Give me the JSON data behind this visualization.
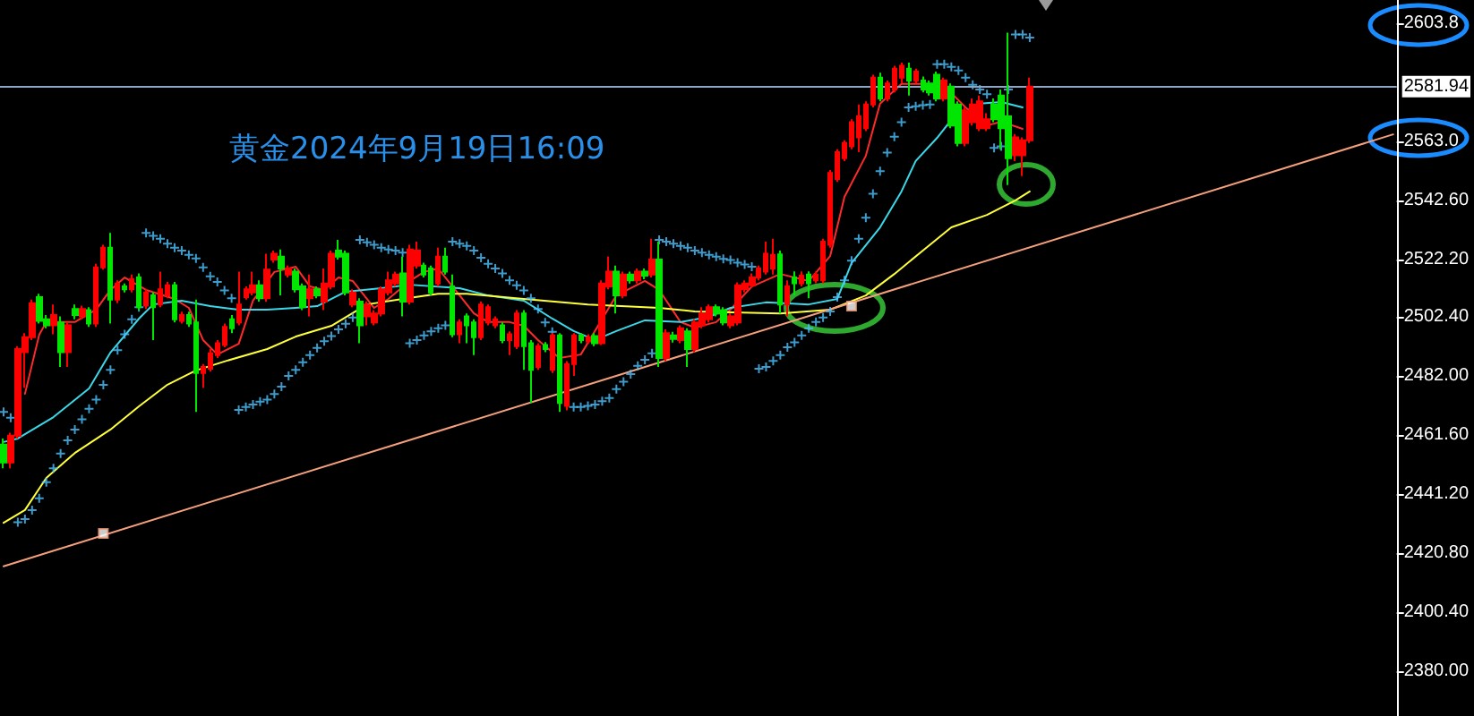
{
  "chart_data": {
    "type": "candlestick",
    "title": "黄金2024年9月19日16:09",
    "categories": [
      null,
      null,
      null,
      null,
      null,
      null,
      null,
      null,
      null,
      null,
      null,
      null,
      null,
      null,
      null,
      null,
      null,
      null,
      null,
      null,
      null,
      null,
      null,
      null,
      null,
      null,
      null,
      null,
      null,
      null,
      null,
      null,
      null,
      null,
      null,
      null,
      null,
      null,
      null,
      null,
      null,
      null,
      null,
      null,
      null,
      null,
      null,
      null,
      null,
      null,
      null,
      null,
      null,
      null,
      null,
      null,
      null,
      null,
      null,
      null,
      null,
      null,
      null,
      null,
      null,
      null,
      null,
      null,
      null,
      null,
      null,
      null,
      null,
      null,
      null,
      null,
      null,
      null,
      null,
      null,
      null,
      null,
      null,
      null,
      null,
      null,
      null,
      null,
      null,
      null,
      null,
      null,
      null,
      null,
      null,
      null,
      null,
      null,
      null,
      null,
      null,
      null,
      null,
      null,
      null,
      null,
      null,
      null,
      null,
      null,
      null,
      null,
      null,
      null,
      null,
      null,
      null,
      null,
      null,
      null,
      null,
      null,
      null,
      null,
      null,
      null,
      null,
      null,
      null,
      null,
      null,
      null,
      null,
      null,
      null,
      null,
      null,
      null,
      null,
      null,
      null,
      null,
      null,
      null,
      null,
      null,
      null,
      null,
      null,
      null,
      null,
      null,
      null,
      null,
      null,
      null,
      null,
      null,
      null,
      null,
      null,
      null,
      null,
      null,
      null,
      null,
      null,
      null,
      null,
      null,
      null,
      null,
      null,
      null,
      null,
      null,
      null,
      null,
      null,
      null,
      null,
      null,
      null,
      null,
      null,
      null,
      null,
      null,
      null,
      null,
      null,
      null,
      null,
      null,
      null,
      null
    ],
    "ohlc": [
      [
        2458.3,
        2460.4,
        2450.1,
        2452.1
      ],
      [
        2452.1,
        2462.4,
        2450.1,
        2461.4
      ],
      [
        2461.4,
        2492.3,
        2460.4,
        2491.3
      ],
      [
        2490.2,
        2496.8,
        2477.9,
        2495.4
      ],
      [
        2495.4,
        2508.4,
        2494.4,
        2507.1
      ],
      [
        2509.2,
        2510.4,
        2500.1,
        2501.0
      ],
      [
        2501.6,
        2503.0,
        2498.5,
        2499.5
      ],
      [
        2499.5,
        2506.7,
        2496.4,
        2503.0
      ],
      [
        2500.5,
        2502.6,
        2485.1,
        2490.2
      ],
      [
        2490.2,
        2500.5,
        2485.1,
        2499.5
      ],
      [
        2505.1,
        2506.7,
        2501.6,
        2503.0
      ],
      [
        2502.6,
        2506.3,
        2501.6,
        2505.1
      ],
      [
        2504.7,
        2505.7,
        2498.9,
        2500.1
      ],
      [
        2500.1,
        2520.7,
        2498.9,
        2519.5
      ],
      [
        2519.5,
        2527.3,
        2518.7,
        2526.3
      ],
      [
        2526.3,
        2531.4,
        2500.1,
        2508.4
      ],
      [
        2508.4,
        2515.0,
        2507.1,
        2513.9
      ],
      [
        2512.9,
        2513.9,
        2510.8,
        2511.9
      ],
      [
        2511.9,
        2517.0,
        2510.8,
        2515.4
      ],
      [
        2516.0,
        2517.4,
        2504.7,
        2505.7
      ],
      [
        2506.3,
        2511.9,
        2505.1,
        2510.8
      ],
      [
        2509.8,
        2510.8,
        2494.4,
        2505.7
      ],
      [
        2506.7,
        2518.0,
        2505.7,
        2511.9
      ],
      [
        2509.8,
        2514.5,
        2508.8,
        2513.3
      ],
      [
        2513.3,
        2514.5,
        2500.5,
        2501.6
      ],
      [
        2501.0,
        2504.2,
        2500.1,
        2503.0
      ],
      [
        2503.0,
        2504.2,
        2498.9,
        2500.1
      ],
      [
        2500.5,
        2508.4,
        2469.6,
        2483.0
      ],
      [
        2483.0,
        2486.1,
        2477.9,
        2485.1
      ],
      [
        2484.5,
        2491.3,
        2483.6,
        2489.8
      ],
      [
        2489.2,
        2494.4,
        2488.2,
        2493.3
      ],
      [
        2492.7,
        2500.1,
        2491.9,
        2498.9
      ],
      [
        2501.6,
        2503.0,
        2496.8,
        2498.5
      ],
      [
        2500.5,
        2518.0,
        2499.5,
        2506.7
      ],
      [
        2509.2,
        2512.9,
        2508.4,
        2511.9
      ],
      [
        2510.8,
        2518.0,
        2509.8,
        2513.3
      ],
      [
        2513.3,
        2515.0,
        2507.7,
        2508.8
      ],
      [
        2508.8,
        2524.2,
        2507.7,
        2518.7
      ],
      [
        2522.2,
        2525.3,
        2521.1,
        2524.2
      ],
      [
        2523.2,
        2525.7,
        2509.8,
        2519.1
      ],
      [
        2517.0,
        2520.1,
        2516.0,
        2519.1
      ],
      [
        2518.0,
        2519.1,
        2510.8,
        2511.9
      ],
      [
        2512.9,
        2513.9,
        2504.7,
        2505.7
      ],
      [
        2508.8,
        2517.0,
        2502.6,
        2511.9
      ],
      [
        2511.9,
        2512.9,
        2508.8,
        2509.8
      ],
      [
        2507.7,
        2519.1,
        2504.7,
        2513.9
      ],
      [
        2512.9,
        2525.3,
        2511.9,
        2524.2
      ],
      [
        2525.3,
        2529.0,
        2522.2,
        2523.2
      ],
      [
        2524.2,
        2525.3,
        2509.8,
        2510.8
      ],
      [
        2506.7,
        2511.9,
        2505.7,
        2510.8
      ],
      [
        2507.7,
        2508.8,
        2493.3,
        2499.5
      ],
      [
        2502.6,
        2507.7,
        2499.5,
        2506.7
      ],
      [
        2500.5,
        2504.7,
        2499.5,
        2503.6
      ],
      [
        2503.6,
        2512.9,
        2502.6,
        2511.9
      ],
      [
        2510.8,
        2518.0,
        2509.8,
        2515.0
      ],
      [
        2513.9,
        2518.0,
        2512.9,
        2517.0
      ],
      [
        2517.4,
        2523.2,
        2502.6,
        2507.7
      ],
      [
        2507.7,
        2527.3,
        2506.7,
        2525.7
      ],
      [
        2520.1,
        2528.4,
        2519.1,
        2525.3
      ],
      [
        2520.1,
        2521.1,
        2516.0,
        2517.0
      ],
      [
        2519.1,
        2520.1,
        2509.8,
        2510.8
      ],
      [
        2513.9,
        2526.3,
        2512.9,
        2523.2
      ],
      [
        2523.2,
        2526.3,
        2517.0,
        2518.0
      ],
      [
        2512.9,
        2517.0,
        2495.4,
        2496.4
      ],
      [
        2496.4,
        2501.6,
        2493.3,
        2500.5
      ],
      [
        2502.6,
        2503.6,
        2493.3,
        2499.5
      ],
      [
        2500.5,
        2501.6,
        2489.2,
        2495.4
      ],
      [
        2495.4,
        2507.7,
        2494.4,
        2506.7
      ],
      [
        2500.5,
        2506.7,
        2499.5,
        2505.7
      ],
      [
        2499.5,
        2502.6,
        2498.5,
        2501.6
      ],
      [
        2499.5,
        2500.5,
        2493.3,
        2494.4
      ],
      [
        2494.4,
        2497.4,
        2489.2,
        2496.4
      ],
      [
        2492.3,
        2504.7,
        2491.3,
        2503.6
      ],
      [
        2503.6,
        2504.7,
        2484.1,
        2492.3
      ],
      [
        2493.3,
        2494.4,
        2472.7,
        2484.1
      ],
      [
        2485.1,
        2493.3,
        2484.1,
        2492.3
      ],
      [
        2492.7,
        2493.7,
        2490.2,
        2491.3
      ],
      [
        2484.1,
        2496.8,
        2483.0,
        2496.0
      ],
      [
        2496.0,
        2496.8,
        2469.6,
        2472.7
      ],
      [
        2471.7,
        2487.1,
        2470.1,
        2486.1
      ],
      [
        2486.1,
        2496.8,
        2482.0,
        2496.0
      ],
      [
        2496.0,
        2496.8,
        2493.3,
        2494.4
      ],
      [
        2493.9,
        2496.4,
        2493.1,
        2495.4
      ],
      [
        2495.8,
        2496.8,
        2492.3,
        2493.3
      ],
      [
        2493.3,
        2515.0,
        2492.7,
        2513.9
      ],
      [
        2512.9,
        2523.2,
        2511.9,
        2518.0
      ],
      [
        2518.0,
        2520.1,
        2503.6,
        2509.8
      ],
      [
        2509.8,
        2518.0,
        2508.8,
        2517.0
      ],
      [
        2517.0,
        2518.0,
        2513.9,
        2515.0
      ],
      [
        2515.0,
        2519.1,
        2513.9,
        2518.0
      ],
      [
        2518.0,
        2519.1,
        2515.4,
        2516.6
      ],
      [
        2517.0,
        2529.4,
        2516.0,
        2522.2
      ],
      [
        2522.2,
        2528.4,
        2485.1,
        2488.2
      ],
      [
        2488.2,
        2498.1,
        2487.1,
        2496.8
      ],
      [
        2496.0,
        2497.2,
        2493.5,
        2494.8
      ],
      [
        2494.4,
        2499.5,
        2493.3,
        2498.5
      ],
      [
        2497.4,
        2498.5,
        2485.1,
        2491.3
      ],
      [
        2491.3,
        2501.6,
        2490.2,
        2500.5
      ],
      [
        2499.5,
        2505.7,
        2498.5,
        2503.6
      ],
      [
        2501.6,
        2506.7,
        2500.5,
        2505.7
      ],
      [
        2505.7,
        2506.7,
        2502.6,
        2503.6
      ],
      [
        2504.7,
        2505.7,
        2499.5,
        2500.5
      ],
      [
        2499.5,
        2503.6,
        2498.5,
        2502.6
      ],
      [
        2500.5,
        2514.3,
        2499.5,
        2513.3
      ],
      [
        2511.9,
        2515.0,
        2510.8,
        2513.9
      ],
      [
        2513.3,
        2517.4,
        2512.5,
        2516.0
      ],
      [
        2516.0,
        2520.1,
        2515.0,
        2519.1
      ],
      [
        2518.0,
        2528.4,
        2517.0,
        2524.2
      ],
      [
        2519.1,
        2529.4,
        2517.0,
        2523.8
      ],
      [
        2524.0,
        2525.3,
        2503.6,
        2506.7
      ],
      [
        2506.7,
        2515.0,
        2502.6,
        2512.9
      ],
      [
        2516.0,
        2518.1,
        2509.8,
        2514.0
      ],
      [
        2514.0,
        2518.1,
        2512.9,
        2516.6
      ],
      [
        2517.0,
        2518.1,
        2508.8,
        2514.0
      ],
      [
        2515.0,
        2518.1,
        2514.0,
        2517.0
      ],
      [
        2515.0,
        2529.4,
        2514.0,
        2528.4
      ],
      [
        2527.3,
        2553.1,
        2526.3,
        2552.1
      ],
      [
        2550.0,
        2560.3,
        2549.0,
        2559.3
      ],
      [
        2557.2,
        2563.4,
        2556.2,
        2562.4
      ],
      [
        2561.3,
        2570.6,
        2560.3,
        2569.6
      ],
      [
        2564.4,
        2575.7,
        2559.3,
        2571.6
      ],
      [
        2567.5,
        2576.8,
        2566.5,
        2575.7
      ],
      [
        2575.7,
        2586.0,
        2574.7,
        2585.0
      ],
      [
        2585.0,
        2586.7,
        2576.8,
        2577.8
      ],
      [
        2577.8,
        2584.0,
        2576.8,
        2583.0
      ],
      [
        2580.9,
        2589.1,
        2579.9,
        2588.1
      ],
      [
        2585.0,
        2590.2,
        2583.0,
        2589.1
      ],
      [
        2588.1,
        2590.2,
        2578.8,
        2584.0
      ],
      [
        2584.0,
        2588.1,
        2583.0,
        2587.1
      ],
      [
        2584.0,
        2585.4,
        2579.9,
        2580.9
      ],
      [
        2583.0,
        2584.0,
        2578.8,
        2579.9
      ],
      [
        2586.0,
        2587.1,
        2576.8,
        2577.8
      ],
      [
        2577.8,
        2585.0,
        2576.8,
        2584.0
      ],
      [
        2581.9,
        2583.0,
        2567.5,
        2568.5
      ],
      [
        2575.7,
        2576.8,
        2561.3,
        2562.4
      ],
      [
        2562.4,
        2574.7,
        2561.3,
        2573.7
      ],
      [
        2569.6,
        2577.8,
        2568.5,
        2575.7
      ],
      [
        2567.5,
        2578.8,
        2566.5,
        2576.8
      ],
      [
        2567.5,
        2572.7,
        2566.5,
        2570.6
      ],
      [
        2575.7,
        2577.8,
        2569.6,
        2570.6
      ],
      [
        2578.8,
        2580.9,
        2560.3,
        2567.5
      ],
      [
        2571.6,
        2600.5,
        2547.9,
        2557.2
      ],
      [
        2558.2,
        2565.5,
        2556.2,
        2564.4
      ],
      [
        2558.2,
        2564.4,
        2551.0,
        2563.4
      ],
      [
        2563.4,
        2585.0,
        2562.4,
        2581.9
      ],
      null,
      null,
      null,
      null,
      null,
      null,
      null,
      null,
      null,
      null,
      null,
      null,
      null,
      null,
      null,
      null,
      null,
      null,
      null,
      null,
      null,
      null,
      null,
      null,
      null,
      null,
      null,
      null,
      null,
      null,
      null,
      null,
      null,
      null,
      null,
      null,
      null,
      null,
      null,
      null,
      null,
      null,
      null,
      null,
      null,
      null,
      null,
      null,
      null,
      null,
      null
    ],
    "colors": [
      "#00e600",
      "#ff0000",
      "#ff0000",
      "#ff0000",
      "#ff0000",
      "#00e600",
      "#00e600",
      "#ff0000",
      "#00e600",
      "#ff0000",
      "#00e600",
      "#ff0000",
      "#00e600",
      "#ff0000",
      "#ff0000",
      "#00e600",
      "#ff0000",
      "#00e600",
      "#ff0000",
      "#00e600",
      "#ff0000",
      "#00e600",
      "#ff0000",
      "#ff0000",
      "#00e600",
      "#ff0000",
      "#00e600",
      "#00e600",
      "#ff0000",
      "#ff0000",
      "#ff0000",
      "#ff0000",
      "#00e600",
      "#ff0000",
      "#ff0000",
      "#ff0000",
      "#00e600",
      "#ff0000",
      "#ff0000",
      "#00e600",
      "#ff0000",
      "#00e600",
      "#00e600",
      "#ff0000",
      "#00e600",
      "#ff0000",
      "#ff0000",
      "#00e600",
      "#00e600",
      "#ff0000",
      "#00e600",
      "#ff0000",
      "#ff0000",
      "#ff0000",
      "#ff0000",
      "#ff0000",
      "#00e600",
      "#ff0000",
      "#ff0000",
      "#00e600",
      "#00e600",
      "#ff0000",
      "#00e600",
      "#00e600",
      "#ff0000",
      "#00e600",
      "#00e600",
      "#ff0000",
      "#ff0000",
      "#ff0000",
      "#00e600",
      "#ff0000",
      "#ff0000",
      "#00e600",
      "#00e600",
      "#ff0000",
      "#00e600",
      "#ff0000",
      "#00e600",
      "#ff0000",
      "#ff0000",
      "#00e600",
      "#ff0000",
      "#00e600",
      "#ff0000",
      "#ff0000",
      "#00e600",
      "#ff0000",
      "#00e600",
      "#ff0000",
      "#00e600",
      "#ff0000",
      "#00e600",
      "#ff0000",
      "#00e600",
      "#ff0000",
      "#00e600",
      "#ff0000",
      "#ff0000",
      "#ff0000",
      "#00e600",
      "#00e600",
      "#ff0000",
      "#ff0000",
      "#ff0000",
      "#ff0000",
      "#ff0000",
      "#ff0000",
      "#ff0000",
      "#00e600",
      "#ff0000",
      "#00e600",
      "#ff0000",
      "#00e600",
      "#ff0000",
      "#ff0000",
      "#ff0000",
      "#ff0000",
      "#ff0000",
      "#ff0000",
      "#ff0000",
      "#ff0000",
      "#ff0000",
      "#00e600",
      "#ff0000",
      "#ff0000",
      "#ff0000",
      "#00e600",
      "#ff0000",
      "#00e600",
      "#00e600",
      "#00e600",
      "#ff0000",
      "#00e600",
      "#00e600",
      "#ff0000",
      "#ff0000",
      "#ff0000",
      "#ff0000",
      "#00e600",
      "#00e600",
      "#00e600",
      "#ff0000",
      "#ff0000",
      "#ff0000",
      null,
      null,
      null,
      null,
      null,
      null,
      null,
      null,
      null,
      null,
      null,
      null,
      null,
      null,
      null,
      null,
      null,
      null,
      null,
      null,
      null,
      null,
      null,
      null,
      null,
      null,
      null,
      null,
      null,
      null,
      null,
      null,
      null,
      null,
      null,
      null,
      null,
      null,
      null,
      null,
      null,
      null,
      null,
      null,
      null,
      null,
      null,
      null,
      null,
      null,
      null
    ],
    "series": [
      {
        "type": "line",
        "color": "#ff2a2a",
        "marker": "none",
        "values": [
          null,
          null,
          null,
          2475.8,
          null,
          2496.2,
          2500.6,
          null,
          null,
          null,
          2500.6,
          null,
          null,
          2504.9,
          null,
          2511.7,
          null,
          2516.0,
          null,
          null,
          2511.7,
          null,
          null,
          null,
          2508.6,
          null,
          2505.5,
          null,
          2494.4,
          null,
          2489.4,
          null,
          null,
          2493.1,
          null,
          2508.0,
          null,
          null,
          2517.9,
          null,
          null,
          2519.7,
          null,
          2512.9,
          null,
          2511.7,
          null,
          2516.0,
          null,
          2514.8,
          null,
          null,
          2505.5,
          null,
          2508.6,
          null,
          null,
          2514.8,
          null,
          2517.9,
          null,
          2519.1,
          null,
          2512.9,
          null,
          null,
          2503.6,
          null,
          2500.6,
          null,
          null,
          2500.6,
          null,
          2499.3,
          null,
          2494.4,
          null,
          null,
          2488.2,
          null,
          null,
          2489.4,
          null,
          null,
          null,
          null,
          2509.8,
          null,
          null,
          null,
          2514.8,
          null,
          2511.7,
          null,
          null,
          2500.6,
          null,
          2498.7,
          null,
          null,
          2500.6,
          null,
          2504.9,
          null,
          null,
          2512.9,
          null,
          null,
          null,
          2517.2,
          null,
          null,
          null,
          2514.8,
          null,
          null,
          2523.4,
          null,
          2543.8,
          null,
          null,
          2558.0,
          null,
          2576.0,
          null,
          null,
          2582.8,
          null,
          null,
          2582.8,
          null,
          null,
          null,
          2579.7,
          null,
          2574.7,
          null,
          null,
          2568.5,
          null,
          2569.8,
          null,
          null,
          2567.3,
          null,
          null,
          null,
          null,
          null,
          null,
          null,
          null,
          null,
          null,
          null,
          null,
          null,
          null,
          null,
          null,
          null,
          null,
          null,
          null,
          null,
          null,
          null,
          null,
          null,
          null,
          null,
          null,
          null,
          null,
          null,
          null,
          null,
          null,
          null,
          null,
          null,
          null,
          null,
          null,
          null,
          null,
          null,
          null,
          null,
          null,
          null,
          null,
          null,
          null,
          null,
          null
        ]
      },
      {
        "type": "line",
        "color": "#3ad8e8",
        "marker": "none",
        "values": [
          2459.2,
          null,
          2460.4,
          null,
          null,
          null,
          null,
          2467.8,
          null,
          null,
          null,
          null,
          2477.7,
          null,
          null,
          2490.1,
          null,
          null,
          null,
          2501.8,
          null,
          2506.7,
          null,
          null,
          null,
          2508.0,
          null,
          null,
          null,
          2506.1,
          null,
          null,
          null,
          2504.9,
          null,
          null,
          null,
          2504.9,
          null,
          null,
          null,
          2505.5,
          null,
          null,
          2506.1,
          null,
          null,
          null,
          2511.1,
          null,
          null,
          null,
          null,
          2512.3,
          null,
          null,
          null,
          2513.5,
          null,
          null,
          null,
          null,
          null,
          null,
          2512.3,
          null,
          null,
          null,
          2509.8,
          null,
          null,
          null,
          null,
          2508.0,
          null,
          null,
          null,
          2501.8,
          null,
          null,
          2497.5,
          null,
          null,
          2494.4,
          null,
          null,
          2497.5,
          null,
          null,
          null,
          2501.2,
          null,
          null,
          null,
          null,
          2500.6,
          null,
          null,
          null,
          2502.4,
          null,
          null,
          2505.5,
          null,
          null,
          null,
          null,
          2507.4,
          null,
          null,
          null,
          null,
          null,
          2506.7,
          null,
          null,
          null,
          2508.6,
          null,
          2521.0,
          null,
          null,
          null,
          2533.3,
          null,
          null,
          2545.7,
          null,
          2556.2,
          null,
          null,
          2564.2,
          null,
          2570.4,
          null,
          null,
          null,
          2576.0,
          null,
          null,
          2576.6,
          null,
          null,
          2574.7,
          null,
          null,
          null,
          null,
          null,
          null,
          null,
          null,
          null,
          null,
          null,
          null,
          null,
          null,
          null,
          null,
          null,
          null,
          null,
          null,
          null,
          null,
          null,
          null,
          null,
          null,
          null,
          null,
          null,
          null,
          null,
          null,
          null,
          null,
          null,
          null,
          null,
          null,
          null,
          null,
          null,
          null,
          null,
          null,
          null,
          null,
          null,
          null,
          null,
          null,
          null,
          null
        ]
      },
      {
        "type": "line",
        "color": "#ffff3a",
        "marker": "none",
        "values": [
          2431.3,
          null,
          null,
          2435.7,
          null,
          null,
          2446.8,
          null,
          null,
          null,
          2455.4,
          null,
          null,
          null,
          null,
          2463.5,
          null,
          null,
          null,
          2471.5,
          null,
          null,
          null,
          2479.0,
          null,
          null,
          null,
          2483.9,
          null,
          null,
          null,
          2487.0,
          null,
          null,
          null,
          null,
          null,
          2491.3,
          null,
          null,
          null,
          2495.6,
          null,
          null,
          null,
          null,
          2499.3,
          null,
          null,
          null,
          null,
          2506.7,
          null,
          null,
          null,
          null,
          2508.6,
          null,
          null,
          null,
          null,
          2510.4,
          null,
          null,
          null,
          2510.4,
          null,
          null,
          null,
          null,
          null,
          null,
          null,
          2508.6,
          null,
          null,
          null,
          null,
          null,
          null,
          null,
          null,
          2506.7,
          null,
          null,
          null,
          null,
          null,
          null,
          null,
          null,
          null,
          2505.5,
          null,
          null,
          null,
          null,
          2504.3,
          null,
          null,
          null,
          null,
          null,
          null,
          null,
          null,
          null,
          null,
          null,
          2503.6,
          null,
          null,
          null,
          null,
          null,
          null,
          2504.9,
          null,
          null,
          null,
          null,
          2509.8,
          null,
          null,
          null,
          2517.2,
          null,
          null,
          null,
          2525.3,
          null,
          null,
          null,
          2533.3,
          null,
          null,
          null,
          null,
          2537.6,
          null,
          null,
          null,
          2542.6,
          null,
          2545.7,
          null,
          null,
          null,
          null,
          null,
          null,
          null,
          null,
          null,
          null,
          null,
          null,
          null,
          null,
          null,
          null,
          null,
          null,
          null,
          null,
          null,
          null,
          null,
          null,
          null,
          null,
          null,
          null,
          null,
          null,
          null,
          null,
          null,
          null,
          null,
          null,
          null,
          null,
          null,
          null,
          null,
          null,
          null,
          null,
          null,
          null,
          null,
          null,
          null,
          null,
          null
        ]
      },
      {
        "type": "scatter",
        "color": "#4cc3ff",
        "marker": "cross",
        "values": [
          2469.6,
          2467.6,
          2431.5,
          2432.6,
          2435.7,
          2439.8,
          2445.3,
          2450.1,
          2455.2,
          2459.8,
          2463.5,
          2467.0,
          2470.7,
          2473.8,
          2478.9,
          2484.1,
          2490.9,
          2496.4,
          2501.6,
          2505.7,
          2531.4,
          2530.4,
          2529.4,
          2527.7,
          2526.3,
          2525.3,
          2523.8,
          2522.6,
          2519.5,
          2516.4,
          2514.5,
          2511.5,
          2508.8,
          2470.3,
          2471.3,
          2472.1,
          2473.1,
          2473.8,
          2475.8,
          2478.3,
          2482.0,
          2484.1,
          2486.7,
          2489.2,
          2491.7,
          2494.0,
          2495.8,
          2498.1,
          2500.0,
          2502.2,
          2529.0,
          2528.1,
          2527.3,
          2526.3,
          2525.7,
          2525.3,
          2524.6,
          2493.3,
          2494.4,
          2496.0,
          2497.4,
          2498.5,
          2499.5,
          2528.4,
          2527.7,
          2526.9,
          2525.3,
          2522.8,
          2520.7,
          2519.1,
          2517.4,
          2515.0,
          2513.3,
          2511.5,
          2508.8,
          2505.1,
          2500.5,
          2497.2,
          null,
          null,
          2471.3,
          2471.3,
          2471.7,
          2472.1,
          2473.3,
          2474.4,
          2477.5,
          2480.0,
          2482.6,
          2485.5,
          2487.6,
          2489.8,
          2529.0,
          2528.4,
          2527.7,
          2526.9,
          2526.3,
          2525.3,
          2524.6,
          2523.8,
          2523.2,
          2522.4,
          2522.0,
          2521.1,
          2520.5,
          2519.7,
          2484.5,
          2485.1,
          2487.2,
          2489.2,
          2491.9,
          2493.6,
          2496.0,
          2498.5,
          2500.6,
          2502.2,
          2504.3,
          2509.2,
          2515.0,
          2521.8,
          2529.4,
          2536.6,
          2544.9,
          2552.7,
          2559.1,
          2564.6,
          2569.6,
          2574.7,
          2575.1,
          2575.5,
          2575.7,
          2589.6,
          2589.6,
          2588.7,
          2587.5,
          2585.0,
          2582.5,
          2580.9,
          2579.3,
          2560.7,
          2561.3,
          2580.9,
          2599.9,
          2599.9,
          2598.8,
          null,
          null,
          null,
          null,
          null,
          null,
          null,
          null,
          null,
          null,
          null,
          null,
          null,
          null,
          null,
          null,
          null,
          null,
          null,
          null,
          null,
          null,
          null,
          null,
          null,
          null,
          null,
          null,
          null,
          null,
          null,
          null,
          null,
          null,
          null,
          null,
          null,
          null,
          null,
          null,
          null,
          null,
          null,
          null,
          null,
          null,
          null,
          null,
          null,
          null,
          null
        ]
      },
      {
        "type": "line",
        "color": "#f4a07c",
        "marker": "none",
        "values": [
          2416.3,
          null,
          null,
          null,
          null,
          null,
          null,
          null,
          null,
          null,
          null,
          null,
          null,
          null,
          null,
          null,
          null,
          null,
          null,
          null,
          null,
          null,
          null,
          null,
          null,
          null,
          null,
          null,
          null,
          null,
          null,
          null,
          null,
          null,
          null,
          null,
          null,
          null,
          null,
          null,
          null,
          null,
          null,
          null,
          null,
          null,
          null,
          null,
          null,
          null,
          null,
          null,
          null,
          null,
          null,
          null,
          null,
          null,
          null,
          null,
          null,
          null,
          null,
          null,
          null,
          null,
          null,
          null,
          null,
          null,
          null,
          null,
          null,
          null,
          null,
          null,
          null,
          null,
          null,
          null,
          null,
          null,
          null,
          null,
          null,
          null,
          null,
          null,
          null,
          null,
          null,
          null,
          null,
          null,
          null,
          null,
          null,
          null,
          null,
          null,
          null,
          null,
          null,
          null,
          null,
          null,
          null,
          null,
          null,
          null,
          null,
          null,
          null,
          null,
          null,
          null,
          null,
          null,
          null,
          null,
          null,
          null,
          null,
          null,
          null,
          null,
          null,
          null,
          null,
          null,
          null,
          null,
          null,
          null,
          null,
          null,
          null,
          null,
          null,
          null,
          null,
          null,
          null,
          null,
          null,
          null,
          null,
          null,
          null,
          null,
          null,
          null,
          null,
          null,
          null,
          null,
          null,
          null,
          null,
          null,
          null,
          null,
          null,
          null,
          null,
          null,
          null,
          null,
          null,
          null,
          null,
          null,
          null,
          null,
          null,
          null,
          null,
          null,
          null,
          null,
          null,
          null,
          null,
          null,
          null,
          null,
          null,
          null,
          null,
          null,
          null,
          null,
          null,
          null,
          null,
          2565.4
        ]
      },
      {
        "type": "scatter",
        "color": "#ffffff",
        "marker": "square",
        "values": [
          null,
          null,
          null,
          null,
          null,
          null,
          null,
          null,
          null,
          null,
          null,
          null,
          null,
          null,
          2427.6,
          null,
          null,
          null,
          null,
          null,
          null,
          null,
          null,
          null,
          null,
          null,
          null,
          null,
          null,
          null,
          null,
          null,
          null,
          null,
          null,
          null,
          null,
          null,
          null,
          null,
          null,
          null,
          null,
          null,
          null,
          null,
          null,
          null,
          null,
          null,
          null,
          null,
          null,
          null,
          null,
          null,
          null,
          null,
          null,
          null,
          null,
          null,
          null,
          null,
          null,
          null,
          null,
          null,
          null,
          null,
          null,
          null,
          null,
          null,
          null,
          null,
          null,
          null,
          null,
          null,
          null,
          null,
          null,
          null,
          null,
          null,
          null,
          null,
          null,
          null,
          null,
          null,
          null,
          null,
          null,
          null,
          null,
          null,
          null,
          null,
          null,
          null,
          null,
          null,
          null,
          null,
          null,
          null,
          null,
          null,
          null,
          null,
          null,
          null,
          null,
          null,
          null,
          null,
          null,
          2506.1,
          null,
          null,
          null,
          null,
          null,
          null,
          null,
          null,
          null,
          null,
          null,
          null,
          null,
          null,
          null,
          null,
          null,
          null,
          null,
          null,
          null,
          null,
          null,
          null,
          null,
          null,
          null,
          null,
          null,
          null,
          null,
          null,
          null,
          null,
          null,
          null,
          null,
          null,
          null,
          null,
          null,
          null,
          null,
          null,
          null,
          null,
          null,
          null,
          null,
          null,
          null,
          null,
          null,
          null,
          null,
          null,
          null,
          null,
          null,
          null,
          null,
          null,
          null,
          null,
          null,
          null,
          null,
          null,
          null,
          null,
          null,
          null,
          null,
          null,
          null,
          null
        ]
      }
    ],
    "ylim": [
      2364.6,
      2611.8
    ],
    "yticks": [
      {
        "value": 2380,
        "label": "2380.00"
      },
      {
        "value": 2400.4,
        "label": "2400.40"
      },
      {
        "value": 2420.8,
        "label": "2420.80"
      },
      {
        "value": 2441.2,
        "label": "2441.20"
      },
      {
        "value": 2461.6,
        "label": "2461.60"
      },
      {
        "value": 2482,
        "label": "2482.00"
      },
      {
        "value": 2502.4,
        "label": "2502.40"
      },
      {
        "value": 2522.2,
        "label": "2522.20"
      },
      {
        "value": 2542.6,
        "label": "2542.60"
      },
      {
        "value": 2563,
        "label": "2563.0"
      },
      2603.8
    ],
    "ref_lines": [
      {
        "axis": "y",
        "value": 2581.94,
        "label": "2581.94",
        "color": "#8ea6c4"
      }
    ],
    "tick_labels": "y"
  }
}
